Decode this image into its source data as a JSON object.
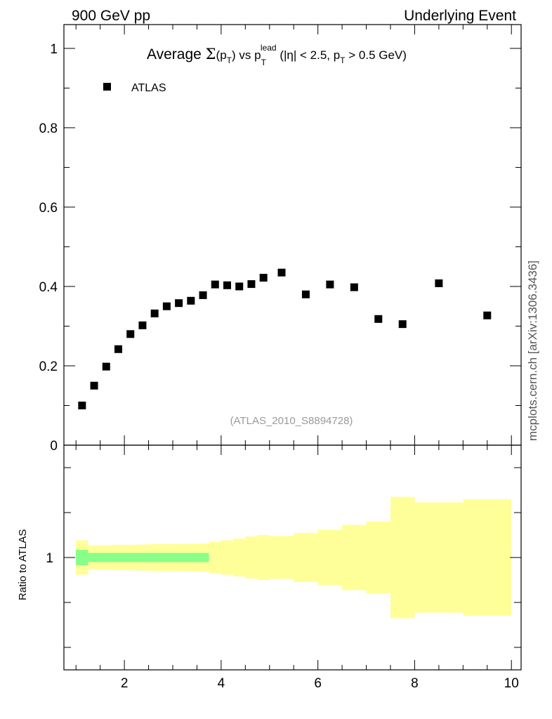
{
  "header": {
    "left": "900 GeV pp",
    "right": "Underlying Event"
  },
  "watermark": "mcplots.cern.ch [arXiv:1306.3436]",
  "analysis_id": "(ATLAS_2010_S8894728)",
  "chart_data": [
    {
      "type": "scatter",
      "title": {
        "p1": "Average ",
        "sigma": "Σ",
        "p2": "(p",
        "sub1": "T",
        "p3": ") vs p",
        "sub2": "T",
        "sup2": "lead",
        "p4": " (|η| < 2.5, p",
        "sub3": "T",
        "p5": " > 0.5 GeV)"
      },
      "legend": {
        "label": "ATLAS",
        "marker": "square",
        "position": "top-left"
      },
      "xlim": [
        0.75,
        10.2
      ],
      "ylim": [
        0,
        1.06
      ],
      "yticks": [
        0,
        0.2,
        0.4,
        0.6,
        0.8,
        1
      ],
      "ytick_labels": [
        "0",
        "0.2",
        "0.4",
        "0.6",
        "0.8",
        "1"
      ],
      "series": [
        {
          "name": "ATLAS",
          "x": [
            1.125,
            1.375,
            1.625,
            1.875,
            2.125,
            2.375,
            2.625,
            2.875,
            3.125,
            3.375,
            3.625,
            3.875,
            4.125,
            4.375,
            4.625,
            4.875,
            5.25,
            5.75,
            6.25,
            6.75,
            7.25,
            7.75,
            8.5,
            9.5
          ],
          "y": [
            0.1,
            0.15,
            0.198,
            0.242,
            0.28,
            0.302,
            0.332,
            0.35,
            0.358,
            0.364,
            0.378,
            0.405,
            0.403,
            0.4,
            0.406,
            0.422,
            0.435,
            0.38,
            0.405,
            0.398,
            0.318,
            0.305,
            0.408,
            0.327
          ]
        }
      ]
    },
    {
      "type": "area",
      "ylabel": "Ratio to ATLAS",
      "xlim": [
        0.75,
        10.2
      ],
      "xticks": [
        2,
        4,
        6,
        8,
        10
      ],
      "xtick_labels": [
        "2",
        "4",
        "6",
        "8",
        "10"
      ],
      "yticks": [
        1
      ],
      "ytick_labels": [
        "1"
      ],
      "ylim": [
        0.5,
        1.5
      ],
      "bands": [
        {
          "kind": "total uncertainty",
          "color": "#ffff99",
          "bins": [
            {
              "x0": 1.0,
              "x1": 1.25,
              "lo": 0.924,
              "hi": 1.076
            },
            {
              "x0": 1.25,
              "x1": 1.5,
              "lo": 0.945,
              "hi": 1.055
            },
            {
              "x0": 1.5,
              "x1": 1.75,
              "lo": 0.945,
              "hi": 1.055
            },
            {
              "x0": 1.75,
              "x1": 2.0,
              "lo": 0.944,
              "hi": 1.056
            },
            {
              "x0": 2.0,
              "x1": 2.25,
              "lo": 0.943,
              "hi": 1.057
            },
            {
              "x0": 2.25,
              "x1": 2.5,
              "lo": 0.942,
              "hi": 1.058
            },
            {
              "x0": 2.5,
              "x1": 2.75,
              "lo": 0.941,
              "hi": 1.059
            },
            {
              "x0": 2.75,
              "x1": 3.0,
              "lo": 0.941,
              "hi": 1.059
            },
            {
              "x0": 3.0,
              "x1": 3.25,
              "lo": 0.94,
              "hi": 1.06
            },
            {
              "x0": 3.25,
              "x1": 3.5,
              "lo": 0.939,
              "hi": 1.061
            },
            {
              "x0": 3.5,
              "x1": 3.75,
              "lo": 0.937,
              "hi": 1.063
            },
            {
              "x0": 3.75,
              "x1": 4.0,
              "lo": 0.93,
              "hi": 1.07
            },
            {
              "x0": 4.0,
              "x1": 4.25,
              "lo": 0.923,
              "hi": 1.077
            },
            {
              "x0": 4.25,
              "x1": 4.5,
              "lo": 0.915,
              "hi": 1.085
            },
            {
              "x0": 4.5,
              "x1": 4.75,
              "lo": 0.907,
              "hi": 1.093
            },
            {
              "x0": 4.75,
              "x1": 5.0,
              "lo": 0.9,
              "hi": 1.1
            },
            {
              "x0": 5.0,
              "x1": 5.5,
              "lo": 0.905,
              "hi": 1.095
            },
            {
              "x0": 5.5,
              "x1": 6.0,
              "lo": 0.89,
              "hi": 1.11
            },
            {
              "x0": 6.0,
              "x1": 6.5,
              "lo": 0.876,
              "hi": 1.124
            },
            {
              "x0": 6.5,
              "x1": 7.0,
              "lo": 0.855,
              "hi": 1.145
            },
            {
              "x0": 7.0,
              "x1": 7.5,
              "lo": 0.84,
              "hi": 1.16
            },
            {
              "x0": 7.5,
              "x1": 8.0,
              "lo": 0.73,
              "hi": 1.27
            },
            {
              "x0": 8.0,
              "x1": 9.0,
              "lo": 0.755,
              "hi": 1.245
            },
            {
              "x0": 9.0,
              "x1": 10.0,
              "lo": 0.74,
              "hi": 1.26
            }
          ]
        },
        {
          "kind": "statistical uncertainty",
          "color": "#88ff88",
          "bins": [
            {
              "x0": 1.0,
              "x1": 1.25,
              "lo": 0.965,
              "hi": 1.035
            },
            {
              "x0": 1.25,
              "x1": 3.75,
              "lo": 0.98,
              "hi": 1.02
            }
          ]
        }
      ]
    }
  ]
}
